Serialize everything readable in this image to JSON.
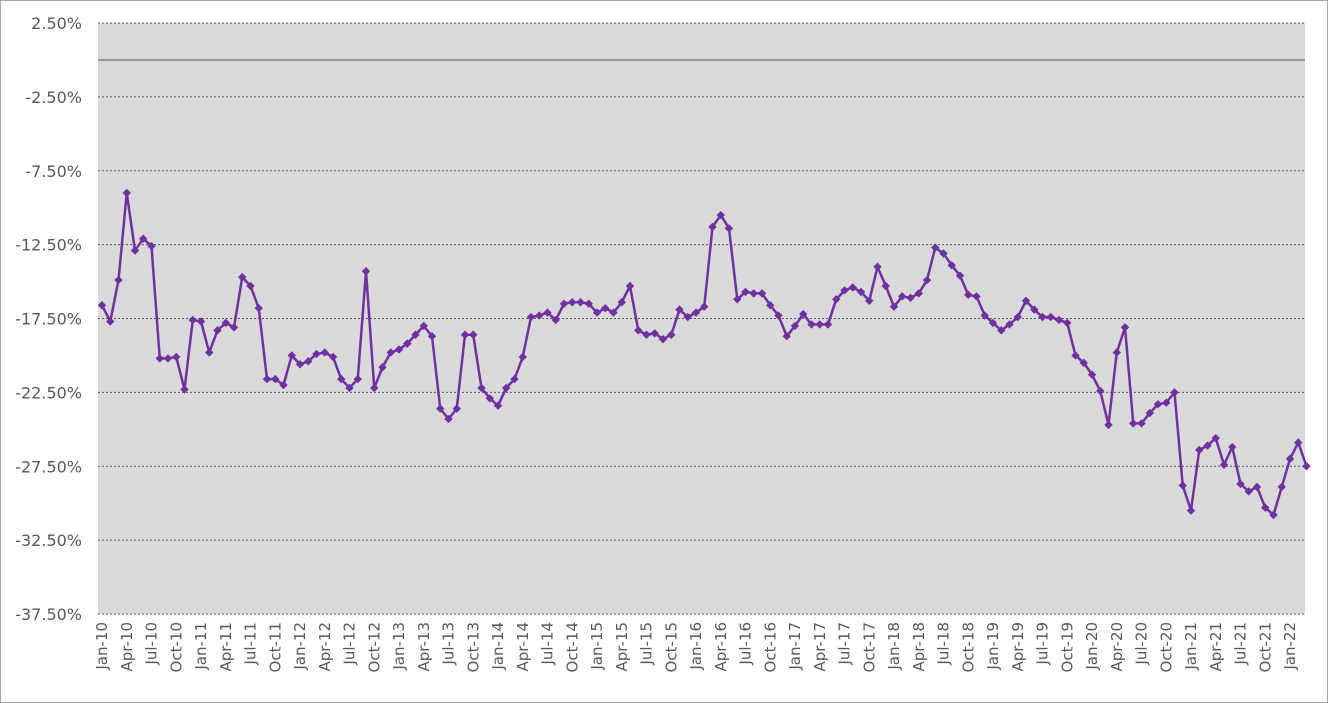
{
  "chart_data": {
    "type": "line",
    "title": "",
    "xlabel": "",
    "ylabel": "",
    "ylim": [
      -37.5,
      2.5
    ],
    "yticks": [
      2.5,
      -2.5,
      -7.5,
      -12.5,
      -17.5,
      -22.5,
      -27.5,
      -32.5,
      -37.5
    ],
    "ytick_labels": [
      "2.50%",
      "-2.50%",
      "-7.50%",
      "-12.50%",
      "-17.50%",
      "-22.50%",
      "-27.50%",
      "-32.50%",
      "-37.50%"
    ],
    "xtick_labels": [
      "Jan-10",
      "Apr-10",
      "Jul-10",
      "Oct-10",
      "Jan-11",
      "Apr-11",
      "Jul-11",
      "Oct-11",
      "Jan-12",
      "Apr-12",
      "Jul-12",
      "Oct-12",
      "Jan-13",
      "Apr-13",
      "Jul-13",
      "Oct-13",
      "Jan-14",
      "Apr-14",
      "Jul-14",
      "Oct-14",
      "Jan-15",
      "Apr-15",
      "Jul-15",
      "Oct-15",
      "Jan-16",
      "Apr-16",
      "Jul-16",
      "Oct-16",
      "Jan-17",
      "Apr-17",
      "Jul-17",
      "Oct-17",
      "Jan-18",
      "Apr-18",
      "Jul-18",
      "Oct-18",
      "Jan-19",
      "Apr-19",
      "Jul-19",
      "Oct-19",
      "Jan-20",
      "Apr-20",
      "Jul-20",
      "Oct-20",
      "Jan-21",
      "Apr-21",
      "Jul-21",
      "Oct-21",
      "Jan-22"
    ],
    "x_start": "Jan-10",
    "x_frequency": "monthly",
    "grid": true,
    "zero_line": true,
    "colors": {
      "line": "#7030a0",
      "plot_background": "#d9d9d9",
      "grid": "#595959",
      "zero_line": "#7f7f7f",
      "tick_text": "#595959"
    },
    "series": [
      {
        "name": "",
        "marker": "diamond",
        "values": [
          -16.6,
          -17.7,
          -14.9,
          -9.0,
          -12.9,
          -12.1,
          -12.6,
          -20.2,
          -20.2,
          -20.1,
          -22.3,
          -17.6,
          -17.7,
          -19.8,
          -18.3,
          -17.8,
          -18.1,
          -14.7,
          -15.3,
          -16.8,
          -21.6,
          -21.6,
          -22.0,
          -20.0,
          -20.6,
          -20.4,
          -19.9,
          -19.8,
          -20.1,
          -21.6,
          -22.2,
          -21.6,
          -14.3,
          -22.2,
          -20.8,
          -19.8,
          -19.6,
          -19.2,
          -18.6,
          -18.0,
          -18.7,
          -23.6,
          -24.3,
          -23.6,
          -18.6,
          -18.6,
          -22.2,
          -22.9,
          -23.4,
          -22.2,
          -21.6,
          -20.1,
          -17.4,
          -17.3,
          -17.1,
          -17.6,
          -16.5,
          -16.4,
          -16.4,
          -16.5,
          -17.1,
          -16.8,
          -17.1,
          -16.4,
          -15.3,
          -18.3,
          -18.6,
          -18.5,
          -18.9,
          -18.6,
          -16.9,
          -17.4,
          -17.1,
          -16.7,
          -11.3,
          -10.5,
          -11.4,
          -16.2,
          -15.7,
          -15.8,
          -15.8,
          -16.6,
          -17.3,
          -18.7,
          -18.0,
          -17.2,
          -17.9,
          -17.9,
          -17.9,
          -16.2,
          -15.6,
          -15.4,
          -15.7,
          -16.3,
          -14.0,
          -15.3,
          -16.7,
          -16.0,
          -16.1,
          -15.8,
          -14.9,
          -12.7,
          -13.1,
          -13.9,
          -14.6,
          -15.9,
          -16.0,
          -17.3,
          -17.8,
          -18.3,
          -17.9,
          -17.4,
          -16.3,
          -16.9,
          -17.4,
          -17.4,
          -17.6,
          -17.8,
          -20.0,
          -20.5,
          -21.3,
          -22.4,
          -24.7,
          -19.8,
          -18.1,
          -24.6,
          -24.6,
          -23.9,
          -23.3,
          -23.2,
          -22.5,
          -28.8,
          -30.5,
          -26.4,
          -26.1,
          -25.6,
          -27.4,
          -26.2,
          -28.7,
          -29.2,
          -28.9,
          -30.3,
          -30.8,
          -28.9,
          -27.0,
          -25.9,
          -27.5
        ]
      }
    ]
  }
}
